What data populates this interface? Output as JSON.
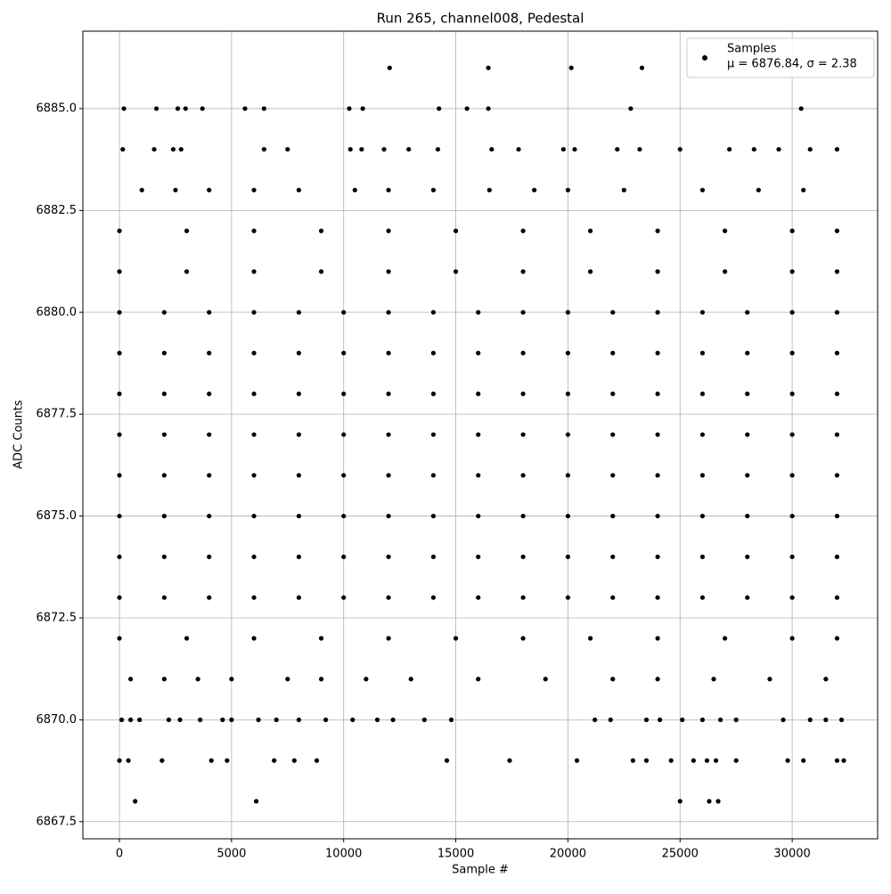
{
  "chart_data": {
    "type": "scatter",
    "title": "Run 265, channel008, Pedestal",
    "x_label": "Sample #",
    "y_label": "ADC Counts",
    "annotation": "μ = 6876.84, σ = 2.38",
    "legend": "upper right",
    "grid": true,
    "xlim": [
      -1630,
      33810
    ],
    "ylim": [
      6867.08,
      6886.9
    ],
    "xticks": [
      0,
      5000,
      10000,
      15000,
      20000,
      25000,
      30000
    ],
    "yticks": [
      {
        "value": 6867.5,
        "label": "6867.5"
      },
      {
        "value": 6870,
        "label": "6870.0"
      },
      {
        "value": 6872.5,
        "label": "6872.5"
      },
      {
        "value": 6875,
        "label": "6875.0"
      },
      {
        "value": 6877.5,
        "label": "6877.5"
      },
      {
        "value": 6880,
        "label": "6880.0"
      },
      {
        "value": 6882.5,
        "label": "6882.5"
      },
      {
        "value": 6885,
        "label": "6885.0"
      }
    ],
    "series": [
      {
        "name": "Samples",
        "color": "#000000",
        "x": [
          0,
          2000,
          4000,
          6000,
          8000,
          10000,
          12000,
          14000,
          16000,
          18000,
          20000,
          22000,
          24000,
          26000,
          28000,
          30000,
          32000,
          0,
          2000,
          4000,
          6000,
          8000,
          10000,
          12000,
          14000,
          16000,
          18000,
          20000,
          22000,
          24000,
          26000,
          28000,
          30000,
          32000,
          0,
          2000,
          4000,
          6000,
          8000,
          10000,
          12000,
          14000,
          16000,
          18000,
          20000,
          22000,
          24000,
          26000,
          28000,
          30000,
          32000,
          0,
          2000,
          4000,
          6000,
          8000,
          10000,
          12000,
          14000,
          16000,
          18000,
          20000,
          22000,
          24000,
          26000,
          28000,
          30000,
          32000,
          0,
          2000,
          4000,
          6000,
          8000,
          10000,
          12000,
          14000,
          16000,
          18000,
          20000,
          22000,
          24000,
          26000,
          28000,
          30000,
          32000,
          0,
          2000,
          4000,
          6000,
          8000,
          10000,
          12000,
          14000,
          16000,
          18000,
          20000,
          22000,
          24000,
          26000,
          28000,
          30000,
          32000,
          0,
          2000,
          4000,
          6000,
          8000,
          10000,
          12000,
          14000,
          16000,
          18000,
          20000,
          22000,
          24000,
          26000,
          28000,
          30000,
          32000,
          0,
          2000,
          4000,
          6000,
          8000,
          10000,
          12000,
          14000,
          16000,
          18000,
          20000,
          22000,
          24000,
          26000,
          28000,
          30000,
          32000,
          0,
          3000,
          6000,
          9000,
          12000,
          15000,
          18000,
          21000,
          24000,
          27000,
          30000,
          32000,
          0,
          3000,
          6000,
          9000,
          12000,
          15000,
          18000,
          21000,
          24000,
          27000,
          30000,
          32000,
          0,
          3000,
          6000,
          9000,
          12000,
          15000,
          18000,
          21000,
          24000,
          27000,
          30000,
          32000,
          1000,
          2500,
          4000,
          6000,
          8000,
          10500,
          12000,
          14000,
          16500,
          18500,
          20000,
          22500,
          26000,
          28500,
          30500,
          500,
          2000,
          3500,
          5000,
          7500,
          9000,
          11000,
          13000,
          16000,
          19000,
          22000,
          24000,
          26500,
          29000,
          31500,
          150,
          1550,
          2400,
          2750,
          6450,
          7500,
          10300,
          10800,
          11800,
          12900,
          14200,
          16600,
          17800,
          19800,
          20300,
          22200,
          23200,
          25000,
          27200,
          28300,
          29400,
          30800,
          32000,
          200,
          1650,
          2600,
          2950,
          3700,
          5600,
          6450,
          10250,
          10850,
          14250,
          15500,
          16450,
          22800,
          30400,
          12050,
          16450,
          20150,
          23300,
          100,
          500,
          900,
          2200,
          2700,
          3600,
          4600,
          5000,
          6200,
          7000,
          8000,
          9200,
          10400,
          11500,
          12200,
          13600,
          14800,
          21200,
          21900,
          23500,
          24100,
          25100,
          26000,
          26800,
          27500,
          29600,
          30800,
          31500,
          32200,
          0,
          400,
          1900,
          4100,
          4800,
          6900,
          7800,
          8800,
          14600,
          17400,
          20400,
          22900,
          23500,
          24600,
          25600,
          26200,
          26600,
          27500,
          29800,
          30500,
          32000,
          32300,
          700,
          6100,
          25000,
          26300,
          26700
        ],
        "values": [
          6873,
          6873,
          6873,
          6873,
          6873,
          6873,
          6873,
          6873,
          6873,
          6873,
          6873,
          6873,
          6873,
          6873,
          6873,
          6873,
          6873,
          6874,
          6874,
          6874,
          6874,
          6874,
          6874,
          6874,
          6874,
          6874,
          6874,
          6874,
          6874,
          6874,
          6874,
          6874,
          6874,
          6874,
          6875,
          6875,
          6875,
          6875,
          6875,
          6875,
          6875,
          6875,
          6875,
          6875,
          6875,
          6875,
          6875,
          6875,
          6875,
          6875,
          6875,
          6876,
          6876,
          6876,
          6876,
          6876,
          6876,
          6876,
          6876,
          6876,
          6876,
          6876,
          6876,
          6876,
          6876,
          6876,
          6876,
          6876,
          6877,
          6877,
          6877,
          6877,
          6877,
          6877,
          6877,
          6877,
          6877,
          6877,
          6877,
          6877,
          6877,
          6877,
          6877,
          6877,
          6877,
          6878,
          6878,
          6878,
          6878,
          6878,
          6878,
          6878,
          6878,
          6878,
          6878,
          6878,
          6878,
          6878,
          6878,
          6878,
          6878,
          6878,
          6879,
          6879,
          6879,
          6879,
          6879,
          6879,
          6879,
          6879,
          6879,
          6879,
          6879,
          6879,
          6879,
          6879,
          6879,
          6879,
          6879,
          6880,
          6880,
          6880,
          6880,
          6880,
          6880,
          6880,
          6880,
          6880,
          6880,
          6880,
          6880,
          6880,
          6880,
          6880,
          6880,
          6880,
          6872,
          6872,
          6872,
          6872,
          6872,
          6872,
          6872,
          6872,
          6872,
          6872,
          6872,
          6872,
          6881,
          6881,
          6881,
          6881,
          6881,
          6881,
          6881,
          6881,
          6881,
          6881,
          6881,
          6881,
          6882,
          6882,
          6882,
          6882,
          6882,
          6882,
          6882,
          6882,
          6882,
          6882,
          6882,
          6882,
          6883,
          6883,
          6883,
          6883,
          6883,
          6883,
          6883,
          6883,
          6883,
          6883,
          6883,
          6883,
          6883,
          6883,
          6883,
          6871,
          6871,
          6871,
          6871,
          6871,
          6871,
          6871,
          6871,
          6871,
          6871,
          6871,
          6871,
          6871,
          6871,
          6871,
          6884,
          6884,
          6884,
          6884,
          6884,
          6884,
          6884,
          6884,
          6884,
          6884,
          6884,
          6884,
          6884,
          6884,
          6884,
          6884,
          6884,
          6884,
          6884,
          6884,
          6884,
          6884,
          6884,
          6885,
          6885,
          6885,
          6885,
          6885,
          6885,
          6885,
          6885,
          6885,
          6885,
          6885,
          6885,
          6885,
          6885,
          6886,
          6886,
          6886,
          6886,
          6870,
          6870,
          6870,
          6870,
          6870,
          6870,
          6870,
          6870,
          6870,
          6870,
          6870,
          6870,
          6870,
          6870,
          6870,
          6870,
          6870,
          6870,
          6870,
          6870,
          6870,
          6870,
          6870,
          6870,
          6870,
          6870,
          6870,
          6870,
          6870,
          6869,
          6869,
          6869,
          6869,
          6869,
          6869,
          6869,
          6869,
          6869,
          6869,
          6869,
          6869,
          6869,
          6869,
          6869,
          6869,
          6869,
          6869,
          6869,
          6869,
          6869,
          6869,
          6868,
          6868,
          6868,
          6868,
          6868
        ]
      }
    ]
  }
}
